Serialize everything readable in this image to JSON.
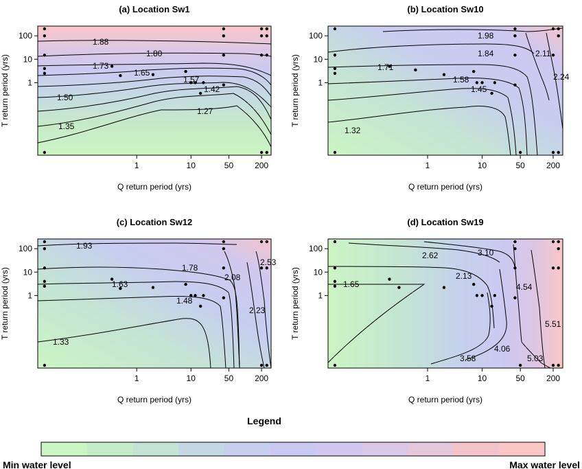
{
  "chart_data": [
    {
      "type": "contour",
      "title": "(a) Location Sw1",
      "xlabel": "Q return period (yrs)",
      "ylabel": "T return period (yrs)",
      "x_scale": "log",
      "y_scale": "log",
      "xticks": [
        1,
        10,
        50,
        200
      ],
      "yticks": [
        1,
        10,
        100
      ],
      "contour_levels": [
        "1.88",
        "1.80",
        "1.73",
        "1.65",
        "1.57",
        "1.50",
        "1.42",
        "1.35",
        "1.27"
      ],
      "sample_points": [
        [
          0.02,
          200
        ],
        [
          0.02,
          100
        ],
        [
          0.02,
          15
        ],
        [
          0.02,
          4
        ],
        [
          0.02,
          2.5
        ],
        [
          0.02,
          0.001
        ],
        [
          40,
          200
        ],
        [
          40,
          100
        ],
        [
          40,
          15
        ],
        [
          40,
          0.8
        ],
        [
          200,
          200
        ],
        [
          200,
          100
        ],
        [
          200,
          15
        ],
        [
          200,
          0.001
        ],
        [
          250,
          200
        ],
        [
          250,
          100
        ],
        [
          250,
          15
        ],
        [
          250,
          0.001
        ],
        [
          0.35,
          5
        ],
        [
          0.5,
          2
        ],
        [
          2,
          2.2
        ],
        [
          8,
          3
        ],
        [
          10,
          1
        ],
        [
          12,
          1
        ],
        [
          17,
          1
        ],
        [
          15,
          0.35
        ]
      ]
    },
    {
      "type": "contour",
      "title": "(b) Location Sw10",
      "xlabel": "Q return period (yrs)",
      "ylabel": "T return period (yrs)",
      "x_scale": "log",
      "y_scale": "log",
      "xticks": [
        1,
        10,
        50,
        200
      ],
      "yticks": [
        1,
        10,
        100
      ],
      "contour_levels": [
        "1.98",
        "1.84",
        "2.11",
        "2.24",
        "1.71",
        "1.58",
        "1.45",
        "1.32"
      ],
      "sample_points": [
        [
          0.02,
          200
        ],
        [
          0.02,
          15
        ],
        [
          0.02,
          4
        ],
        [
          0.02,
          2.5
        ],
        [
          0.02,
          0.001
        ],
        [
          40,
          200
        ],
        [
          40,
          100
        ],
        [
          40,
          15
        ],
        [
          40,
          0.8
        ],
        [
          50,
          0.001
        ],
        [
          200,
          200
        ],
        [
          250,
          200
        ],
        [
          250,
          100
        ],
        [
          200,
          15
        ],
        [
          200,
          0.001
        ],
        [
          250,
          0.001
        ],
        [
          0.2,
          5
        ],
        [
          0.6,
          3.5
        ],
        [
          2,
          2.2
        ],
        [
          7,
          3
        ],
        [
          8,
          1
        ],
        [
          10,
          1
        ],
        [
          17,
          1
        ],
        [
          15,
          0.35
        ]
      ]
    },
    {
      "type": "contour",
      "title": "(c) Location Sw12",
      "xlabel": "Q return period (yrs)",
      "ylabel": "T return period (yrs)",
      "x_scale": "log",
      "y_scale": "log",
      "xticks": [
        1,
        10,
        50,
        200
      ],
      "yticks": [
        1,
        10,
        100
      ],
      "contour_levels": [
        "1.93",
        "1.78",
        "2.08",
        "2.53",
        "1.63",
        "1.48",
        "2.23",
        "1.33"
      ],
      "sample_points": [
        [
          0.02,
          200
        ],
        [
          0.02,
          100
        ],
        [
          0.02,
          15
        ],
        [
          0.02,
          4
        ],
        [
          0.02,
          2.5
        ],
        [
          0.02,
          0.001
        ],
        [
          40,
          200
        ],
        [
          40,
          100
        ],
        [
          40,
          15
        ],
        [
          40,
          0.8
        ],
        [
          200,
          200
        ],
        [
          250,
          200
        ],
        [
          200,
          15
        ],
        [
          250,
          15
        ],
        [
          200,
          0.001
        ],
        [
          250,
          0.001
        ],
        [
          0.35,
          5
        ],
        [
          0.5,
          2
        ],
        [
          2,
          2.2
        ],
        [
          8,
          3
        ],
        [
          10,
          1
        ],
        [
          12,
          1
        ],
        [
          17,
          1
        ],
        [
          15,
          0.35
        ]
      ]
    },
    {
      "type": "contour",
      "title": "(d) Location Sw19",
      "xlabel": "Q return period (yrs)",
      "ylabel": "T return period (yrs)",
      "x_scale": "log",
      "y_scale": "log",
      "xticks": [
        1,
        10,
        50,
        200
      ],
      "yticks": [
        1,
        10,
        100
      ],
      "contour_levels": [
        "2.62",
        "3.10",
        "2.13",
        "1.65",
        "4.54",
        "5.51",
        "4.06",
        "3.58",
        "5.03"
      ],
      "sample_points": [
        [
          0.02,
          200
        ],
        [
          0.02,
          15
        ],
        [
          0.02,
          4
        ],
        [
          0.02,
          2.5
        ],
        [
          0.02,
          0.001
        ],
        [
          40,
          200
        ],
        [
          40,
          100
        ],
        [
          40,
          15
        ],
        [
          40,
          0.8
        ],
        [
          50,
          0.001
        ],
        [
          200,
          200
        ],
        [
          250,
          200
        ],
        [
          250,
          100
        ],
        [
          200,
          15
        ],
        [
          250,
          15
        ],
        [
          200,
          0.001
        ],
        [
          250,
          0.001
        ],
        [
          0.2,
          5
        ],
        [
          0.3,
          2.2
        ],
        [
          2,
          2.2
        ],
        [
          7,
          3
        ],
        [
          8,
          1
        ],
        [
          10,
          1
        ],
        [
          17,
          1
        ],
        [
          15,
          0.35
        ]
      ]
    }
  ],
  "legend": {
    "title": "Legend",
    "min_label": "Min water level",
    "max_label": "Max water level",
    "colors": [
      "#ccf5c4",
      "#c5ecc9",
      "#c2e3d6",
      "#c3d8e3",
      "#c6cfee",
      "#cbc9f2",
      "#d2c8ef",
      "#dbc7e6",
      "#e6c6da",
      "#f2c3c9",
      "#fbc6c6"
    ]
  }
}
